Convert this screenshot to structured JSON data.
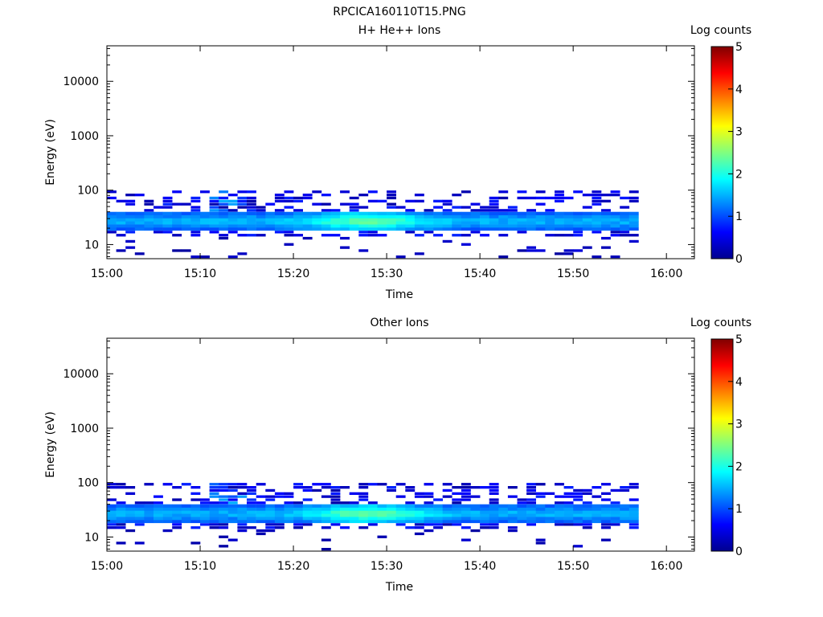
{
  "page_title": "RPCICA160110T15.PNG",
  "chart_data": [
    {
      "type": "heatmap",
      "title": "H+ He++ Ions",
      "xlabel": "Time",
      "ylabel": "Energy (eV)",
      "colorbar_label": "Log counts",
      "x_ticks": [
        "15:00",
        "15:10",
        "15:20",
        "15:30",
        "15:40",
        "15:50",
        "16:00"
      ],
      "xlim_minutes": [
        0,
        63
      ],
      "y_ticks": [
        "10",
        "100",
        "1000",
        "10000"
      ],
      "y_scale": "log",
      "ylim": [
        5.5,
        45000
      ],
      "colorbar_ticks": [
        "0",
        "1",
        "2",
        "3",
        "4",
        "5"
      ],
      "clim": [
        0,
        5
      ],
      "data_time_range_minutes": [
        0,
        57
      ],
      "core_energy_range_eV": [
        18,
        38
      ],
      "peak_log_counts": 2.8,
      "peak_time": "15:28"
    },
    {
      "type": "heatmap",
      "title": "Other Ions",
      "xlabel": "Time",
      "ylabel": "Energy (eV)",
      "colorbar_label": "Log counts",
      "x_ticks": [
        "15:00",
        "15:10",
        "15:20",
        "15:30",
        "15:40",
        "15:50",
        "16:00"
      ],
      "xlim_minutes": [
        0,
        63
      ],
      "y_ticks": [
        "10",
        "100",
        "1000",
        "10000"
      ],
      "y_scale": "log",
      "ylim": [
        5.5,
        45000
      ],
      "colorbar_ticks": [
        "0",
        "1",
        "2",
        "3",
        "4",
        "5"
      ],
      "clim": [
        0,
        5
      ],
      "data_time_range_minutes": [
        0,
        57
      ],
      "core_energy_range_eV": [
        18,
        38
      ],
      "peak_log_counts": 2.8,
      "peak_time": "15:28"
    }
  ]
}
